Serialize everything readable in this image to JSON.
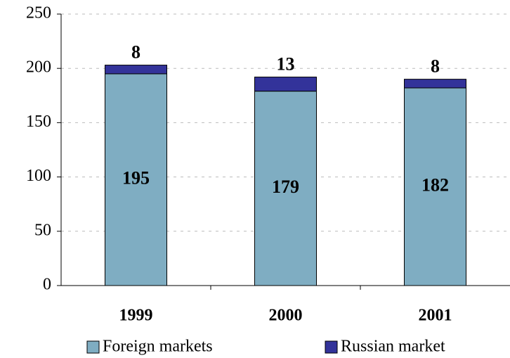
{
  "chart_data": {
    "type": "stacked_bar",
    "categories": [
      "1999",
      "2000",
      "2001"
    ],
    "series": [
      {
        "name": "Foreign markets",
        "color": "#7fadc2",
        "values": [
          195,
          179,
          182
        ]
      },
      {
        "name": "Russian market",
        "color": "#33339a",
        "values": [
          8,
          13,
          8
        ]
      }
    ],
    "ylim": [
      0,
      250
    ],
    "yticks": [
      0,
      50,
      100,
      150,
      200,
      250
    ],
    "grid": true
  }
}
